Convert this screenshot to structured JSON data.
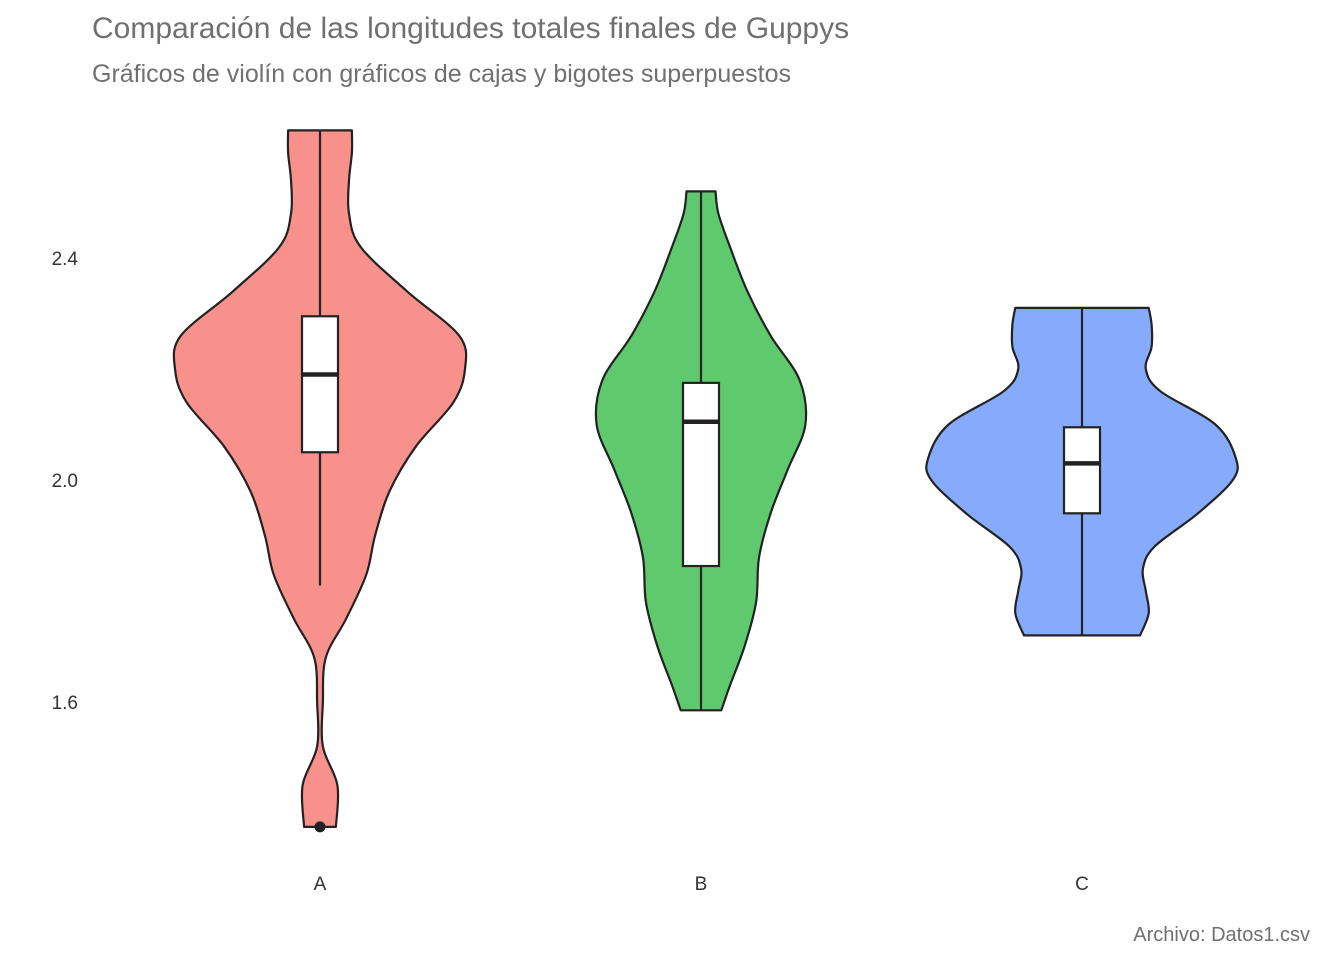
{
  "chart_data": {
    "type": "violin",
    "title": "Comparación de las longitudes totales finales de Guppys",
    "subtitle": "Gráficos de violín con gráficos de cajas y bigotes superpuestos",
    "caption": "Archivo: Datos1.csv",
    "xlabel": "",
    "ylabel": "",
    "yticks": [
      {
        "value": 1.6,
        "label": "1.6"
      },
      {
        "value": 2.0,
        "label": "2.0"
      },
      {
        "value": 2.4,
        "label": "2.4"
      }
    ],
    "grid": false,
    "legend": "none",
    "groups": [
      {
        "category": "A",
        "color": "#F8908C",
        "min": 1.375,
        "max": 2.63,
        "box": {
          "q1": 2.05,
          "median": 2.19,
          "q3": 2.295,
          "whisker_low": 1.81,
          "whisker_high": 2.63
        },
        "outliers": [
          1.375
        ],
        "density": [
          [
            1.375,
            0.055
          ],
          [
            1.45,
            0.06
          ],
          [
            1.52,
            0.01
          ],
          [
            1.6,
            0.01
          ],
          [
            1.68,
            0.02
          ],
          [
            1.75,
            0.09
          ],
          [
            1.83,
            0.16
          ],
          [
            1.9,
            0.19
          ],
          [
            1.98,
            0.24
          ],
          [
            2.06,
            0.33
          ],
          [
            2.14,
            0.46
          ],
          [
            2.2,
            0.5
          ],
          [
            2.26,
            0.48
          ],
          [
            2.34,
            0.3
          ],
          [
            2.42,
            0.14
          ],
          [
            2.48,
            0.1
          ],
          [
            2.54,
            0.1
          ],
          [
            2.59,
            0.11
          ],
          [
            2.63,
            0.11
          ]
        ]
      },
      {
        "category": "B",
        "color": "#5FCA6D",
        "min": 1.585,
        "max": 2.52,
        "box": {
          "q1": 1.845,
          "median": 2.105,
          "q3": 2.175,
          "whisker_low": 1.585,
          "whisker_high": 2.52
        },
        "outliers": [],
        "density": [
          [
            1.585,
            0.07
          ],
          [
            1.63,
            0.1
          ],
          [
            1.7,
            0.15
          ],
          [
            1.78,
            0.19
          ],
          [
            1.86,
            0.2
          ],
          [
            1.94,
            0.24
          ],
          [
            2.02,
            0.3
          ],
          [
            2.1,
            0.36
          ],
          [
            2.18,
            0.34
          ],
          [
            2.26,
            0.24
          ],
          [
            2.34,
            0.16
          ],
          [
            2.42,
            0.1
          ],
          [
            2.48,
            0.06
          ],
          [
            2.52,
            0.05
          ]
        ]
      },
      {
        "category": "C",
        "color": "#86ABFC",
        "min": 1.72,
        "max": 2.31,
        "box": {
          "q1": 1.94,
          "median": 2.03,
          "q3": 2.095,
          "whisker_low": 1.72,
          "whisker_high": 2.31
        },
        "outliers": [],
        "density": [
          [
            1.72,
            0.2
          ],
          [
            1.76,
            0.23
          ],
          [
            1.8,
            0.22
          ],
          [
            1.84,
            0.21
          ],
          [
            1.88,
            0.25
          ],
          [
            1.94,
            0.4
          ],
          [
            2.0,
            0.52
          ],
          [
            2.04,
            0.53
          ],
          [
            2.1,
            0.46
          ],
          [
            2.16,
            0.27
          ],
          [
            2.2,
            0.22
          ],
          [
            2.24,
            0.24
          ],
          [
            2.28,
            0.24
          ],
          [
            2.31,
            0.23
          ]
        ]
      }
    ]
  }
}
